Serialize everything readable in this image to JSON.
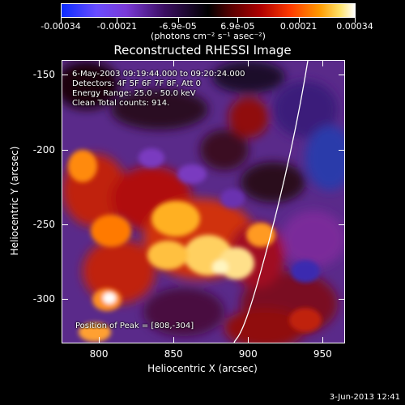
{
  "colorbar": {
    "ticks": [
      {
        "label": "-0.00034",
        "value": -0.00034
      },
      {
        "label": "-0.00021",
        "value": -0.00021
      },
      {
        "label": "-6.9e-05",
        "value": -6.9e-05
      },
      {
        "label": "6.9e-05",
        "value": 6.9e-05
      },
      {
        "label": "0.00021",
        "value": 0.00021
      },
      {
        "label": "0.00034",
        "value": 0.00034
      }
    ],
    "units": "(photons cm⁻² s⁻¹ asec⁻²)",
    "range": [
      -0.00034,
      0.00034
    ]
  },
  "title": "Reconstructed RHESSI Image",
  "info": {
    "line1": "6-May-2003 09:19:44.000 to 09:20:24.000",
    "line2": "Detectors: 4F 5F 6F 7F 8F, Att 0",
    "line3": "Energy Range: 25.0 - 50.0 keV",
    "line4": "Clean    Total counts: 914."
  },
  "peak": "Position of Peak = [808,-304]",
  "axes": {
    "xlabel": "Heliocentric X (arcsec)",
    "ylabel": "Heliocentric Y (arcsec)",
    "xlim": [
      775,
      965
    ],
    "ylim": [
      -330,
      -140
    ],
    "xticks": [
      {
        "label": "800",
        "value": 800
      },
      {
        "label": "850",
        "value": 850
      },
      {
        "label": "900",
        "value": 900
      },
      {
        "label": "950",
        "value": 950
      }
    ],
    "yticks": [
      {
        "label": "-150",
        "value": -150
      },
      {
        "label": "-200",
        "value": -200
      },
      {
        "label": "-250",
        "value": -250
      },
      {
        "label": "-300",
        "value": -300
      }
    ]
  },
  "timestamp": "3-Jun-2013 12:41"
}
